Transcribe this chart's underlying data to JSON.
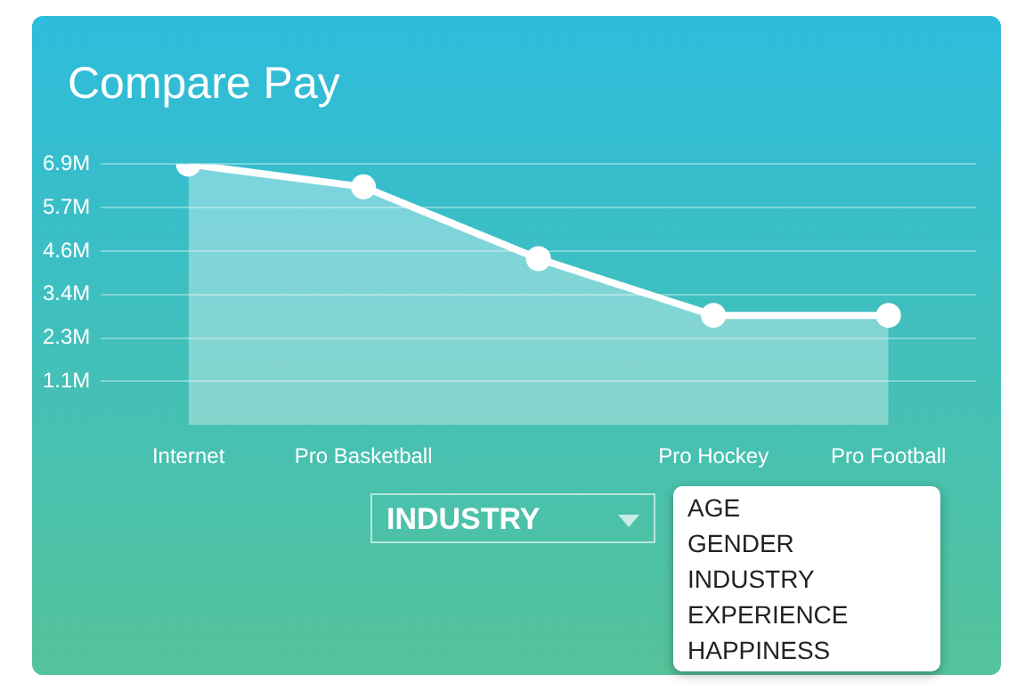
{
  "chart_data": {
    "type": "area",
    "title": "Compare Pay",
    "categories": [
      "Internet",
      "Pro Basketball",
      null,
      "Pro Hockey",
      "Pro Football"
    ],
    "values": [
      6.9,
      6.3,
      4.4,
      2.9,
      2.9
    ],
    "color": "#ffffff",
    "marker": "circle",
    "grid": "y",
    "legend": false,
    "ylim": [
      0,
      6.9
    ],
    "yticks": [
      {
        "value": 1.15,
        "label": "1.1M"
      },
      {
        "value": 2.3,
        "label": "2.3M"
      },
      {
        "value": 3.45,
        "label": "3.4M"
      },
      {
        "value": 4.6,
        "label": "4.6M"
      },
      {
        "value": 5.75,
        "label": "5.7M"
      },
      {
        "value": 6.9,
        "label": "6.9M"
      }
    ],
    "annotations": [
      "AGE",
      "GENDER",
      "INDUSTRY",
      "EXPERIENCE",
      "HAPPINESS",
      "INDUSTRY"
    ]
  }
}
